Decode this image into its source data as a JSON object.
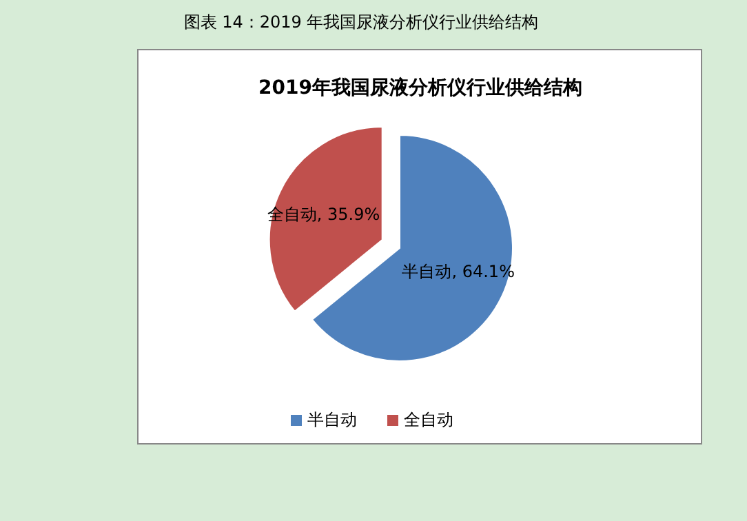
{
  "chart_data": {
    "type": "pie",
    "title": "2019年我国尿液分析仪行业供给结构",
    "annotations": [
      "图表 14：2019 年我国尿液分析仪行业供给结构"
    ],
    "categories": [
      "半自动",
      "全自动"
    ],
    "values": [
      64.1,
      35.9
    ],
    "colors": [
      "#4f81bd",
      "#c0504d"
    ],
    "value_labels": [
      "半自动, 64.1%",
      "全自动, 35.9%"
    ],
    "legend": "bottom"
  }
}
